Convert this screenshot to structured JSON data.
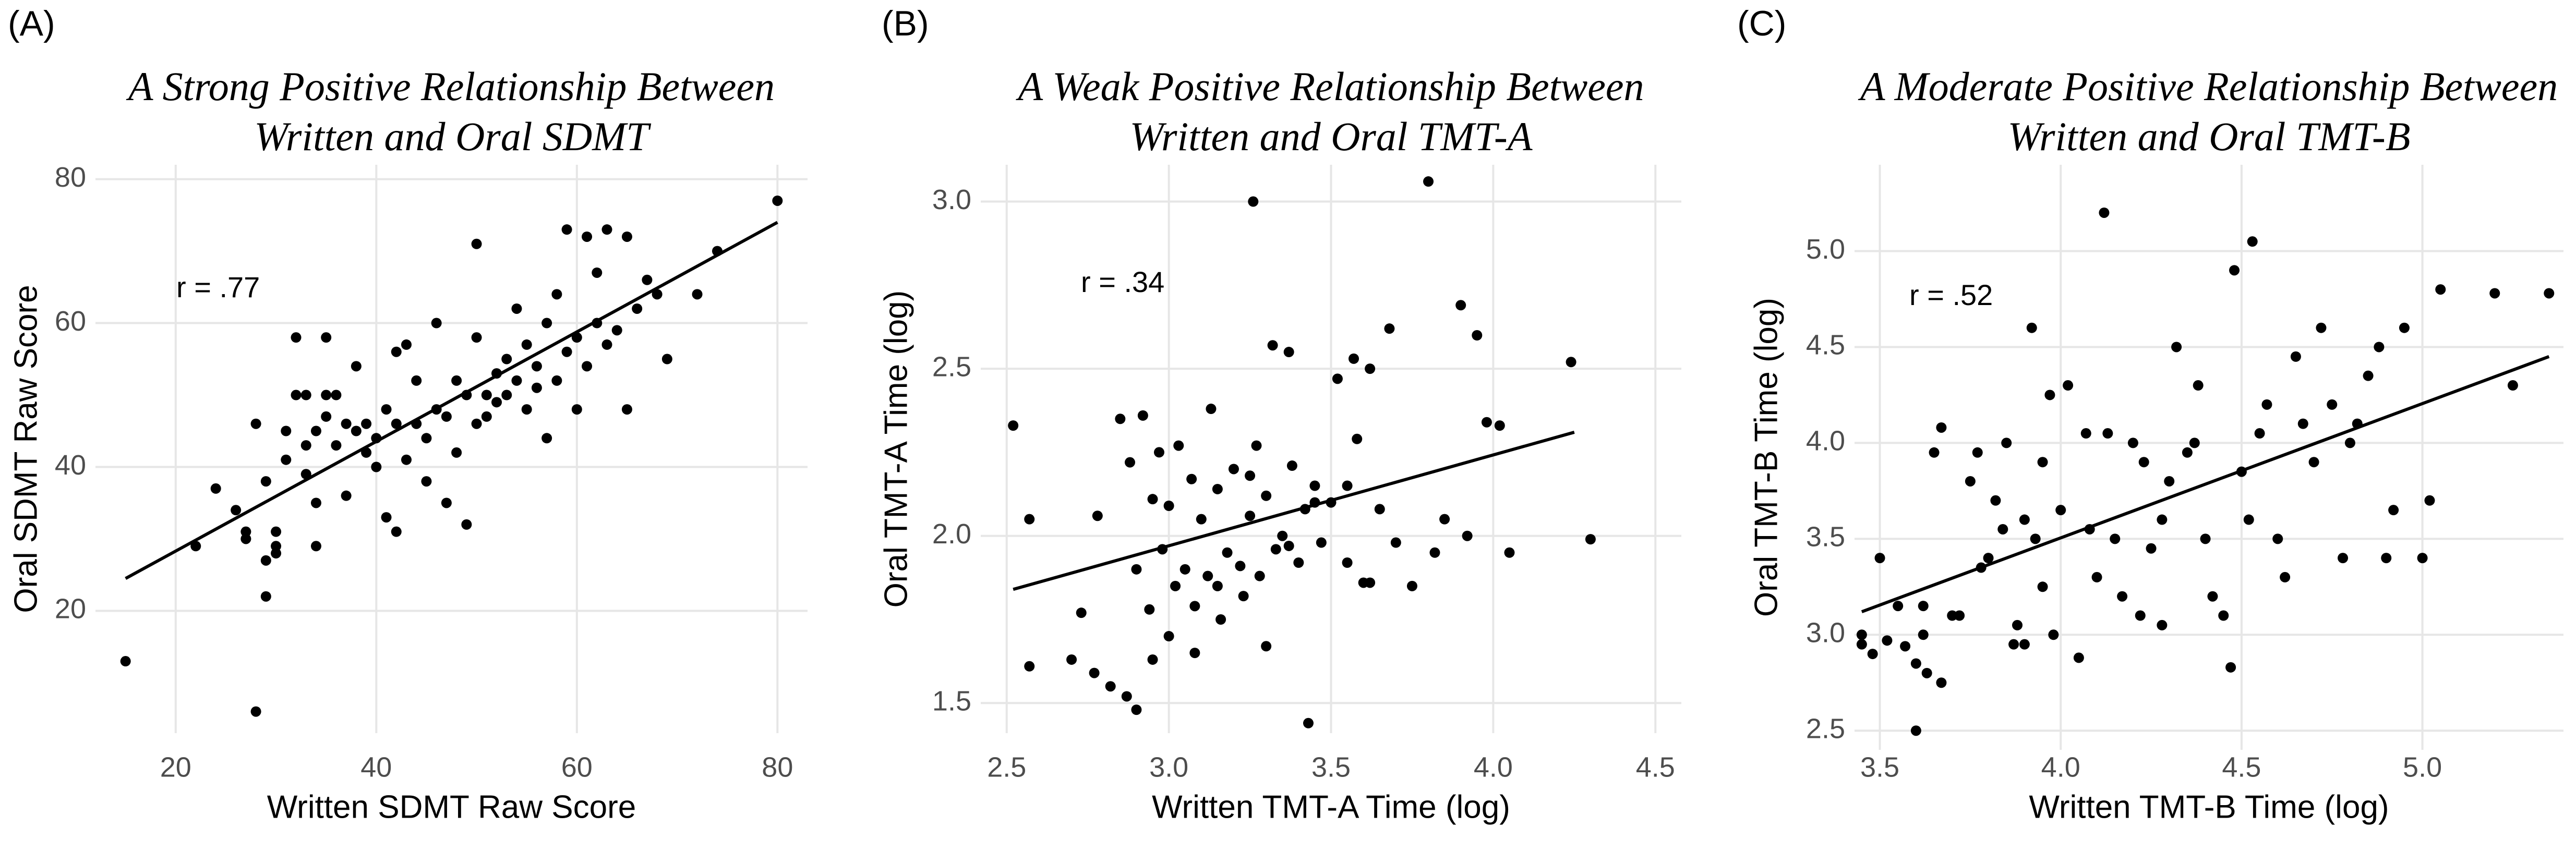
{
  "chart_data": [
    {
      "type": "scatter",
      "panel_label": "(A)",
      "title": [
        "A Strong Positive Relationship Between",
        "Written and Oral SDMT"
      ],
      "annotation": "r = .77",
      "x_label": "Written SDMT Raw Score",
      "y_label": "Oral SDMT Raw Score",
      "color": "#000000",
      "grid": true,
      "xlim": [
        12,
        83
      ],
      "ylim": [
        3,
        82
      ],
      "xticks": [
        20,
        40,
        60,
        80
      ],
      "yticks": [
        20,
        40,
        60,
        80
      ],
      "x": [
        15,
        22,
        24,
        26,
        27,
        27,
        28,
        28,
        29,
        29,
        29,
        30,
        30,
        30,
        31,
        31,
        32,
        32,
        33,
        33,
        33,
        34,
        34,
        34,
        35,
        35,
        35,
        36,
        36,
        37,
        37,
        38,
        38,
        39,
        39,
        40,
        40,
        41,
        41,
        42,
        42,
        42,
        43,
        43,
        44,
        44,
        45,
        45,
        46,
        46,
        47,
        47,
        48,
        48,
        49,
        49,
        50,
        50,
        50,
        51,
        51,
        52,
        52,
        53,
        53,
        54,
        54,
        55,
        55,
        56,
        56,
        57,
        57,
        58,
        58,
        59,
        59,
        60,
        60,
        61,
        61,
        62,
        62,
        63,
        63,
        64,
        65,
        65,
        66,
        67,
        68,
        69,
        72,
        74,
        80
      ],
      "y": [
        13,
        29,
        37,
        34,
        31,
        30,
        46,
        6,
        27,
        22,
        38,
        31,
        29,
        28,
        41,
        45,
        50,
        58,
        50,
        39,
        43,
        35,
        29,
        45,
        58,
        50,
        47,
        43,
        50,
        46,
        36,
        45,
        54,
        42,
        46,
        40,
        44,
        33,
        48,
        31,
        56,
        46,
        57,
        41,
        52,
        46,
        38,
        44,
        60,
        48,
        35,
        47,
        42,
        52,
        32,
        50,
        71,
        46,
        58,
        50,
        47,
        53,
        49,
        55,
        50,
        62,
        52,
        57,
        48,
        54,
        51,
        44,
        60,
        64,
        52,
        73,
        56,
        58,
        48,
        72,
        54,
        67,
        60,
        73,
        57,
        59,
        72,
        48,
        62,
        66,
        64,
        55,
        64,
        70,
        77
      ],
      "trend": {
        "x": [
          15,
          80
        ],
        "y": [
          24.5,
          74
        ]
      }
    },
    {
      "type": "scatter",
      "panel_label": "(B)",
      "title": [
        "A Weak Positive Relationship Between",
        "Written and Oral TMT-A"
      ],
      "annotation": "r = .34",
      "x_label": "Written TMT-A Time (log)",
      "y_label": "Oral TMT-A Time (log)",
      "color": "#000000",
      "grid": true,
      "xlim": [
        2.42,
        4.58
      ],
      "ylim": [
        1.41,
        3.11
      ],
      "xticks": [
        2.5,
        {
          "value": 3,
          "label": "3.0"
        },
        3.5,
        {
          "value": 4,
          "label": "4.0"
        },
        4.5
      ],
      "yticks": [
        1.5,
        {
          "value": 2,
          "label": "2.0"
        },
        2.5,
        {
          "value": 3,
          "label": "3.0"
        }
      ],
      "x": [
        2.52,
        2.57,
        2.57,
        2.7,
        2.73,
        2.77,
        2.78,
        2.82,
        2.85,
        2.87,
        2.88,
        2.9,
        2.9,
        2.92,
        2.94,
        2.95,
        2.97,
        2.98,
        3.0,
        3.02,
        3.03,
        3.05,
        3.07,
        3.08,
        3.1,
        3.12,
        3.13,
        3.15,
        3.16,
        3.18,
        3.2,
        3.22,
        3.23,
        3.25,
        3.26,
        3.27,
        3.28,
        3.3,
        3.3,
        3.32,
        3.33,
        3.35,
        3.37,
        3.38,
        3.4,
        3.42,
        3.43,
        3.45,
        3.47,
        3.5,
        3.52,
        3.55,
        3.57,
        3.58,
        3.6,
        3.62,
        3.65,
        3.68,
        3.7,
        3.75,
        3.8,
        3.82,
        3.85,
        3.9,
        3.92,
        3.95,
        3.98,
        4.02,
        4.05,
        4.24,
        4.3,
        3.62,
        3.45,
        3.08,
        3.15,
        2.95,
        3.0,
        3.25,
        3.37,
        3.55
      ],
      "y": [
        2.33,
        1.61,
        2.05,
        1.63,
        1.77,
        1.59,
        2.06,
        1.55,
        2.35,
        1.52,
        2.22,
        1.48,
        1.9,
        2.36,
        1.78,
        1.63,
        2.25,
        1.96,
        1.7,
        1.85,
        2.27,
        1.9,
        2.17,
        1.79,
        2.05,
        1.88,
        2.38,
        2.14,
        1.75,
        1.95,
        2.2,
        1.91,
        1.82,
        2.06,
        3.0,
        2.27,
        1.88,
        2.12,
        1.67,
        2.57,
        1.96,
        2.0,
        2.55,
        2.21,
        1.92,
        2.08,
        1.44,
        2.15,
        1.98,
        2.1,
        2.47,
        1.92,
        2.53,
        2.29,
        1.86,
        2.5,
        2.08,
        2.62,
        1.98,
        1.85,
        3.06,
        1.95,
        2.05,
        2.69,
        2.0,
        2.6,
        2.34,
        2.33,
        1.95,
        2.52,
        1.99,
        1.86,
        2.1,
        1.65,
        1.85,
        2.11,
        2.09,
        2.18,
        1.97,
        2.15
      ],
      "trend": {
        "x": [
          2.52,
          4.25
        ],
        "y": [
          1.84,
          2.31
        ]
      }
    },
    {
      "type": "scatter",
      "panel_label": "(C)",
      "title": [
        "A Moderate Positive Relationship Between",
        "Written and Oral TMT-B"
      ],
      "annotation": "r = .52",
      "x_label": "Written TMT-B Time (log)",
      "y_label": "Oral TMT-B Time (log)",
      "color": "#000000",
      "grid": true,
      "xlim": [
        3.43,
        5.39
      ],
      "ylim": [
        2.4,
        5.45
      ],
      "xticks": [
        3.5,
        {
          "value": 4,
          "label": "4.0"
        },
        4.5,
        {
          "value": 5,
          "label": "5.0"
        }
      ],
      "yticks": [
        2.5,
        {
          "value": 3,
          "label": "3.0"
        },
        3.5,
        {
          "value": 4,
          "label": "4.0"
        },
        4.5,
        {
          "value": 5,
          "label": "5.0"
        }
      ],
      "x": [
        3.45,
        3.45,
        3.48,
        3.5,
        3.52,
        3.55,
        3.57,
        3.6,
        3.6,
        3.62,
        3.63,
        3.65,
        3.67,
        3.67,
        3.7,
        3.72,
        3.75,
        3.77,
        3.78,
        3.8,
        3.82,
        3.84,
        3.85,
        3.87,
        3.88,
        3.9,
        3.9,
        3.92,
        3.93,
        3.95,
        3.97,
        3.98,
        4.0,
        4.02,
        4.05,
        4.07,
        4.1,
        4.12,
        4.13,
        4.15,
        4.17,
        4.2,
        4.22,
        4.23,
        4.25,
        4.28,
        4.3,
        4.32,
        4.35,
        4.37,
        4.38,
        4.4,
        4.42,
        4.45,
        4.47,
        4.48,
        4.5,
        4.52,
        4.53,
        4.55,
        4.57,
        4.6,
        4.62,
        4.65,
        4.67,
        4.7,
        4.72,
        4.75,
        4.78,
        4.8,
        4.82,
        4.85,
        4.88,
        4.9,
        4.92,
        4.95,
        5.0,
        5.02,
        5.05,
        5.2,
        5.25,
        5.35,
        3.62,
        3.95,
        4.08,
        4.28
      ],
      "y": [
        2.95,
        3.0,
        2.9,
        3.4,
        2.97,
        3.15,
        2.94,
        2.5,
        2.85,
        3.0,
        2.8,
        3.95,
        4.08,
        2.75,
        3.1,
        3.1,
        3.8,
        3.95,
        3.35,
        3.4,
        3.7,
        3.55,
        4.0,
        2.95,
        3.05,
        3.6,
        2.95,
        4.6,
        3.5,
        3.9,
        4.25,
        3.0,
        3.65,
        4.3,
        2.88,
        4.05,
        3.3,
        5.2,
        4.05,
        3.5,
        3.2,
        4.0,
        3.1,
        3.9,
        3.45,
        3.6,
        3.8,
        4.5,
        3.95,
        4.0,
        4.3,
        3.5,
        3.2,
        3.1,
        2.83,
        4.9,
        3.85,
        3.6,
        5.05,
        4.05,
        4.2,
        3.5,
        3.3,
        4.45,
        4.1,
        3.9,
        4.6,
        4.2,
        3.4,
        4.0,
        4.1,
        4.35,
        4.5,
        3.4,
        3.65,
        4.6,
        3.4,
        3.7,
        4.8,
        4.78,
        4.3,
        4.78,
        3.15,
        3.25,
        3.55,
        3.05
      ],
      "trend": {
        "x": [
          3.45,
          5.35
        ],
        "y": [
          3.12,
          4.45
        ]
      }
    }
  ]
}
